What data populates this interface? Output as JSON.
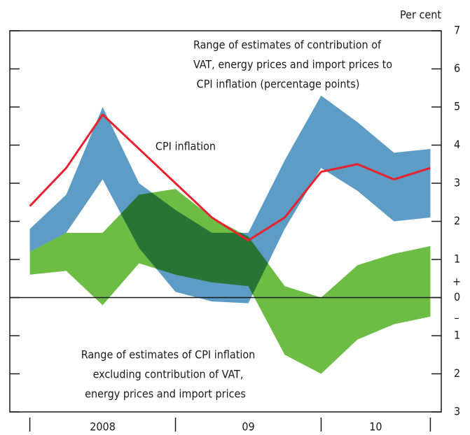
{
  "chart_data": {
    "type": "line-range",
    "unit_label": "Per cent",
    "x": [
      0,
      1,
      2,
      3,
      4,
      5,
      6,
      7,
      8,
      9,
      10,
      11
    ],
    "xlim": [
      -0.55,
      11.3
    ],
    "xticks": [
      0,
      4,
      8,
      11
    ],
    "xtick_labels": [
      {
        "value": 2,
        "label": "2008"
      },
      {
        "value": 6,
        "label": "09"
      },
      {
        "value": 9.5,
        "label": "10"
      }
    ],
    "ylim": [
      -3,
      7
    ],
    "yticks": [
      7,
      6,
      5,
      4,
      3,
      2,
      1,
      0,
      {
        "value": -1,
        "label": "1"
      },
      {
        "value": -2,
        "label": "2"
      },
      {
        "value": -3,
        "label": "3"
      }
    ],
    "sign_labels": [
      "+",
      "–"
    ],
    "bands": [
      {
        "color": "#6dbd45",
        "label_lines": [
          "Range of estimates of CPI inflation",
          "excluding contribution of VAT,",
          "energy prices and import prices"
        ],
        "low": [
          0.6,
          0.7,
          -0.2,
          0.9,
          0.6,
          0.4,
          0.3,
          -1.5,
          -2.0,
          -1.1,
          -0.7,
          -0.5
        ],
        "high": [
          1.2,
          1.7,
          1.7,
          2.7,
          2.85,
          2.1,
          1.6,
          0.3,
          0.0,
          0.85,
          1.15,
          1.35
        ]
      },
      {
        "color": "#5d9cc4",
        "label_lines": [
          "Range of estimates of contribution of",
          "VAT, energy prices and import prices to",
          "CPI inflation (percentage points)"
        ],
        "low": [
          1.2,
          1.7,
          3.1,
          1.3,
          0.15,
          -0.1,
          -0.15,
          1.8,
          3.4,
          2.8,
          2.0,
          2.1
        ],
        "high": [
          1.8,
          2.7,
          5.0,
          3.0,
          2.3,
          1.7,
          1.7,
          3.6,
          5.3,
          4.6,
          3.8,
          3.9
        ]
      }
    ],
    "series": [
      {
        "name": "CPI inflation",
        "color": "#e8212e",
        "values": [
          2.4,
          3.4,
          4.8,
          3.9,
          3.0,
          2.1,
          1.5,
          2.1,
          3.3,
          3.5,
          3.1,
          3.4
        ]
      }
    ]
  }
}
